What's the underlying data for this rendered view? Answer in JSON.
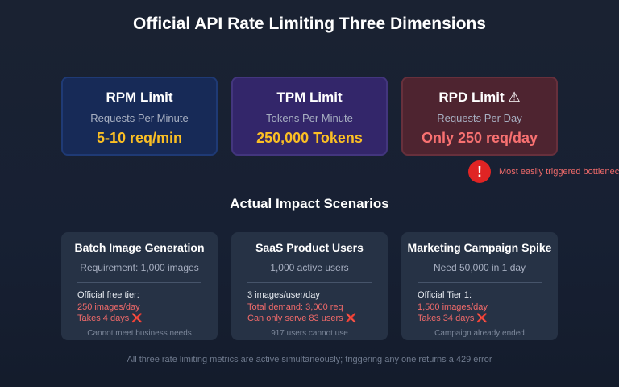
{
  "title": "Official API Rate Limiting Three Dimensions",
  "limits": [
    {
      "name": "RPM Limit",
      "desc": "Requests Per Minute",
      "value": "5-10 req/min",
      "value_color": "#fbbf24"
    },
    {
      "name": "TPM Limit",
      "desc": "Tokens Per Minute",
      "value": "250,000 Tokens",
      "value_color": "#fbbf24"
    },
    {
      "name": "RPD Limit ⚠",
      "desc": "Requests Per Day",
      "value": "Only 250 req/day",
      "value_color": "#f87171"
    }
  ],
  "warning": {
    "icon": "exclamation-icon",
    "text": "Most easily triggered bottleneck"
  },
  "subtitle": "Actual Impact Scenarios",
  "scenarios": [
    {
      "title": "Batch Image Generation",
      "requirement": "Requirement: 1,000 images",
      "line1": "Official free tier:",
      "line2": "250 images/day",
      "line3": "Takes 4 days",
      "footer": "Cannot meet business needs"
    },
    {
      "title": "SaaS Product Users",
      "requirement": "1,000 active users",
      "line1": "3 images/user/day",
      "line2": "Total demand: 3,000 req",
      "line3": "Can only serve 83 users",
      "footer": "917 users cannot use"
    },
    {
      "title": "Marketing Campaign Spike",
      "requirement": "Need 50,000 in 1 day",
      "line1": "Official Tier 1:",
      "line2": "1,500 images/day",
      "line3": "Takes 34 days",
      "footer": "Campaign already ended"
    }
  ],
  "cross_icon": "❌",
  "footer": "All three rate limiting metrics are active simultaneously; triggering any one returns a 429 error"
}
